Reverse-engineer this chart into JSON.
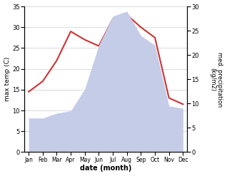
{
  "months": [
    "Jan",
    "Feb",
    "Mar",
    "Apr",
    "May",
    "Jun",
    "Jul",
    "Aug",
    "Sep",
    "Oct",
    "Nov",
    "Dec"
  ],
  "temperature": [
    14.5,
    17.0,
    22.0,
    29.0,
    27.0,
    25.5,
    32.0,
    33.0,
    30.0,
    27.5,
    13.0,
    11.5
  ],
  "precipitation": [
    7.0,
    7.0,
    8.0,
    8.5,
    13.0,
    22.0,
    28.0,
    29.0,
    24.0,
    22.0,
    9.5,
    9.0
  ],
  "temp_color": "#cc3333",
  "precip_fill_color": "#c5cce8",
  "temp_ylim": [
    0,
    35
  ],
  "precip_ylim": [
    0,
    30
  ],
  "temp_yticks": [
    0,
    5,
    10,
    15,
    20,
    25,
    30,
    35
  ],
  "precip_yticks": [
    0,
    5,
    10,
    15,
    20,
    25,
    30
  ],
  "xlabel": "date (month)",
  "ylabel_left": "max temp (C)",
  "ylabel_right": "med. precipitation\n(kg/m2)",
  "bg_color": "#ffffff",
  "grid_color": "#cccccc",
  "figsize": [
    3.18,
    2.47
  ],
  "dpi": 100
}
